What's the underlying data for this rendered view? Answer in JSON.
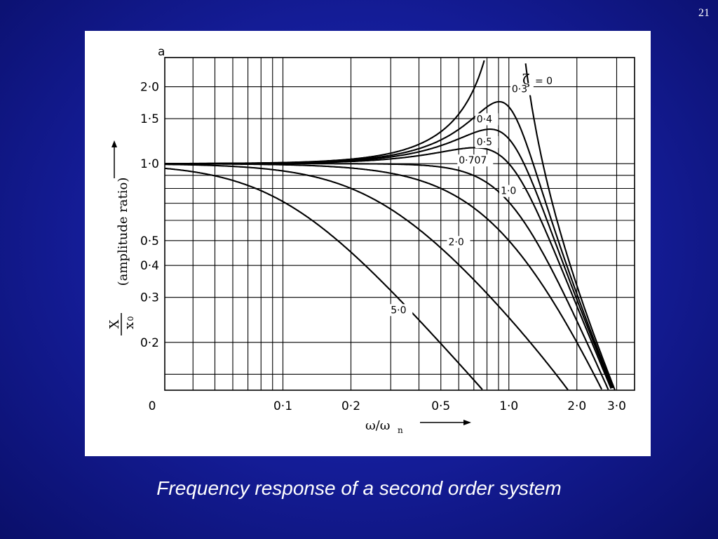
{
  "slide": {
    "number": "21",
    "caption": "Frequency response of a second order system"
  },
  "figure_tag": "a",
  "chart_data": {
    "type": "line",
    "xlabel": "ω/ω",
    "xlabel_sub": "n",
    "ylabel_ratio_top": "X",
    "ylabel_ratio_bottom": "x",
    "ylabel_ratio_sub": "0",
    "ylabel_text": "(amplitude ratio)",
    "x_scale": "log",
    "y_scale": "log",
    "grid": true,
    "xlim": [
      0.03,
      3.6
    ],
    "ylim": [
      0.13,
      2.6
    ],
    "x_ticks": [
      {
        "value": 0.1,
        "label": "0·1"
      },
      {
        "value": 0.2,
        "label": "0·2"
      },
      {
        "value": 0.5,
        "label": "0·5"
      },
      {
        "value": 1.0,
        "label": "1·0"
      },
      {
        "value": 2.0,
        "label": "2·0"
      },
      {
        "value": 3.0,
        "label": "3·0"
      }
    ],
    "x_origin_label": "0",
    "y_ticks": [
      {
        "value": 2.0,
        "label": "2·0"
      },
      {
        "value": 1.5,
        "label": "1·5"
      },
      {
        "value": 1.0,
        "label": "1·0"
      },
      {
        "value": 0.5,
        "label": "0·5"
      },
      {
        "value": 0.4,
        "label": "0·4"
      },
      {
        "value": 0.3,
        "label": "0·3"
      },
      {
        "value": 0.2,
        "label": "0·2"
      }
    ],
    "zeta_symbol": "ζ",
    "series": [
      {
        "name": "= 0",
        "zeta": 0
      },
      {
        "name": "0·3",
        "zeta": 0.3
      },
      {
        "name": "0·4",
        "zeta": 0.4
      },
      {
        "name": "0·5",
        "zeta": 0.5
      },
      {
        "name": "0·707",
        "zeta": 0.707
      },
      {
        "name": "1·0",
        "zeta": 1.0
      },
      {
        "name": "2·0",
        "zeta": 2.0
      },
      {
        "name": "5·0",
        "zeta": 5.0
      }
    ]
  }
}
